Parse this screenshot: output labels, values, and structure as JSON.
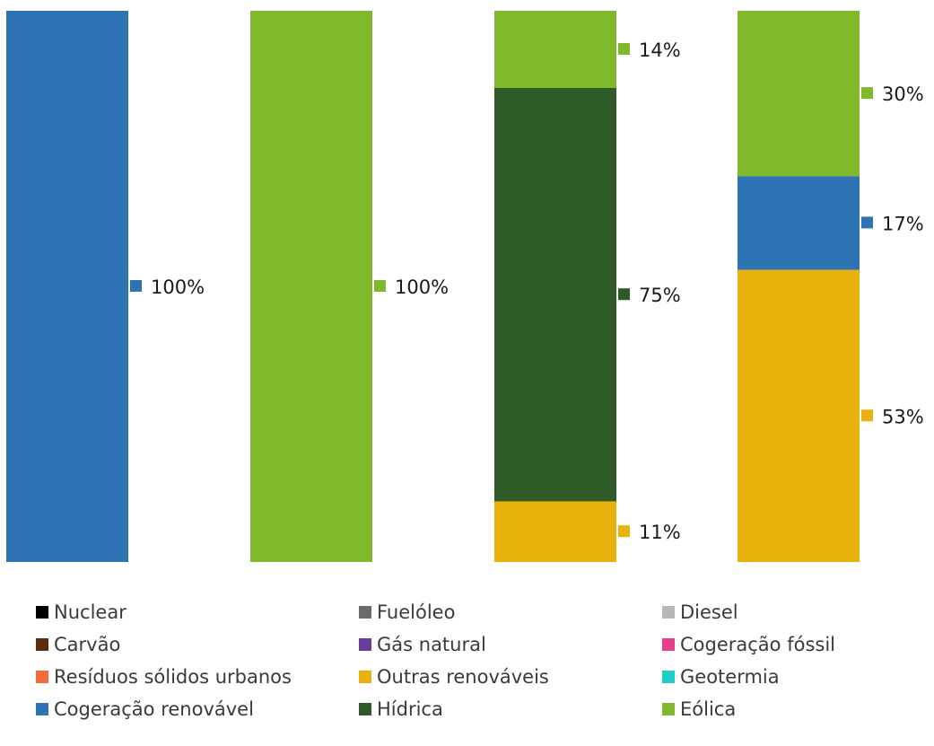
{
  "chart_data": {
    "type": "bar",
    "stacked": true,
    "orientation": "vertical",
    "categories": [
      "",
      "",
      "",
      ""
    ],
    "ylim": [
      0,
      100
    ],
    "grid": false,
    "legend_position": "bottom",
    "value_format": "percent",
    "series": [
      {
        "name": "Nuclear",
        "color": "#000000",
        "values": [
          0,
          0,
          0,
          0
        ]
      },
      {
        "name": "Fuelóleo",
        "color": "#6b6b6b",
        "values": [
          0,
          0,
          0,
          0
        ]
      },
      {
        "name": "Diesel",
        "color": "#b7b7b7",
        "values": [
          0,
          0,
          0,
          0
        ]
      },
      {
        "name": "Carvão",
        "color": "#5c2f0e",
        "values": [
          0,
          0,
          0,
          0
        ]
      },
      {
        "name": "Gás natural",
        "color": "#6a3d9a",
        "values": [
          0,
          0,
          0,
          0
        ]
      },
      {
        "name": "Cogeração fóssil",
        "color": "#e83e8c",
        "values": [
          0,
          0,
          0,
          0
        ]
      },
      {
        "name": "Resíduos sólidos urbanos",
        "color": "#f26b3a",
        "values": [
          0,
          0,
          0,
          0
        ]
      },
      {
        "name": "Outras renováveis",
        "color": "#e8b10c",
        "values": [
          0,
          0,
          11,
          53
        ]
      },
      {
        "name": "Geotermia",
        "color": "#1ccfc9",
        "values": [
          0,
          0,
          0,
          0
        ]
      },
      {
        "name": "Cogeração renovável",
        "color": "#2e74b5",
        "values": [
          100,
          0,
          0,
          17
        ]
      },
      {
        "name": "Hídrica",
        "color": "#2d5a27",
        "values": [
          0,
          0,
          75,
          0
        ]
      },
      {
        "name": "Eólica",
        "color": "#80b92b",
        "values": [
          0,
          100,
          14,
          30
        ]
      }
    ]
  }
}
